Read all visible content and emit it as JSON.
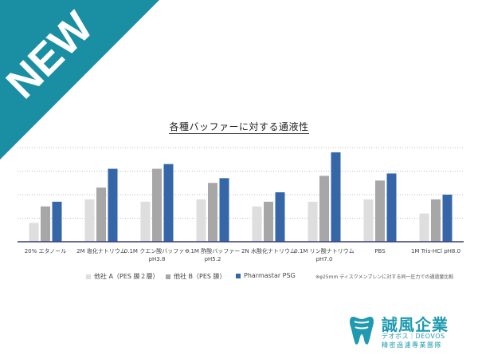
{
  "banner": {
    "text": "NEW",
    "color": "#1a8ea3"
  },
  "colors": {
    "a": "#dedede",
    "b": "#a7a7a7",
    "c": "#3567a8",
    "baseline": "#3a3a7a",
    "grid": "#bdbdbd"
  },
  "chart_data": {
    "type": "bar",
    "title": "各種バッファーに対する通液性",
    "categories": [
      [
        "20% エタノール"
      ],
      [
        "2M 塩化ナトリウム"
      ],
      [
        "0.1M クエン酸バッファー",
        "pH3.8"
      ],
      [
        "0.1M 酢酸バッファー",
        "pH5.2"
      ],
      [
        "2N 水酸化ナトリウム"
      ],
      [
        "0.1M リン酸ナトリウム",
        "pH7.0"
      ],
      [
        "PBS"
      ],
      [
        "1M Tris-HCl pH8.0"
      ]
    ],
    "series": [
      {
        "name": "他社 A（PES 膜２層）",
        "color": "#dedede",
        "values": [
          8,
          18,
          17,
          18,
          15,
          17,
          18,
          12
        ]
      },
      {
        "name": "他社 B（PES 膜）",
        "color": "#a7a7a7",
        "values": [
          15,
          23,
          31,
          25,
          17,
          28,
          26,
          18
        ]
      },
      {
        "name": "Pharmastar PSG",
        "color": "#3567a8",
        "values": [
          17,
          31,
          33,
          27,
          21,
          38,
          29,
          20
        ]
      }
    ],
    "ylim": [
      0,
      40
    ],
    "grid": true,
    "legend_position": "bottom",
    "note": "※φ25mm ディスクメンブレンに対する同一圧力での通過量比較"
  },
  "logo": {
    "name": "誠風企業",
    "subtitle": "デオボス｜DEOVOS",
    "tagline": "精密過濾專業團隊"
  }
}
